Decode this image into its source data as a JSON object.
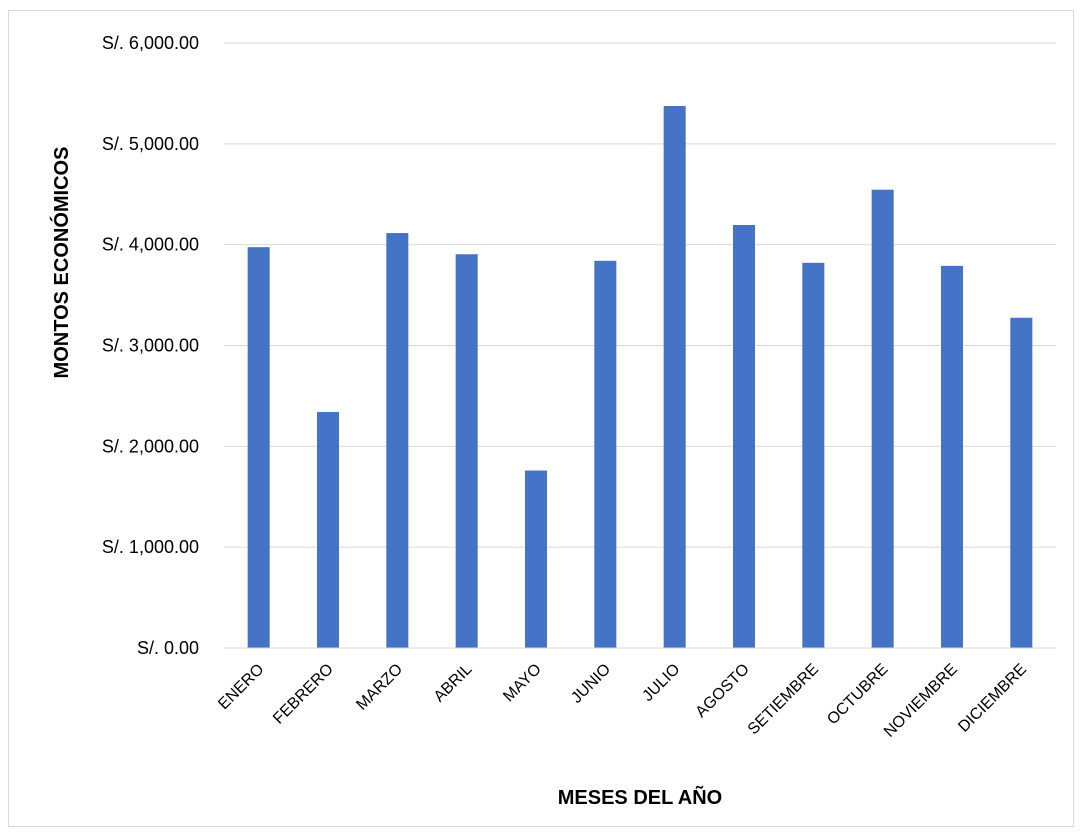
{
  "chart_data": {
    "type": "bar",
    "title": "",
    "xlabel": "MESES DEL AÑO",
    "ylabel": "MONTOS ECONÓMICOS",
    "ylim": [
      0,
      6000
    ],
    "yticks": [
      0,
      1000,
      2000,
      3000,
      4000,
      5000,
      6000
    ],
    "ytick_labels": [
      "S/. 0.00",
      "S/. 1,000.00",
      "S/. 2,000.00",
      "S/. 3,000.00",
      "S/. 4,000.00",
      "S/. 5,000.00",
      "S/. 6,000.00"
    ],
    "categories": [
      "ENERO",
      "FEBRERO",
      "MARZO",
      "ABRIL",
      "MAYO",
      "JUNIO",
      "JULIO",
      "AGOSTO",
      "SETIEMBRE",
      "OCTUBRE",
      "NOVIEMBRE",
      "DICIEMBRE"
    ],
    "values": [
      3975,
      2340,
      4115,
      3905,
      1760,
      3840,
      5375,
      4195,
      3820,
      4545,
      3790,
      3275
    ],
    "grid": true,
    "legend": "none",
    "bar_color": "#4472c4"
  }
}
